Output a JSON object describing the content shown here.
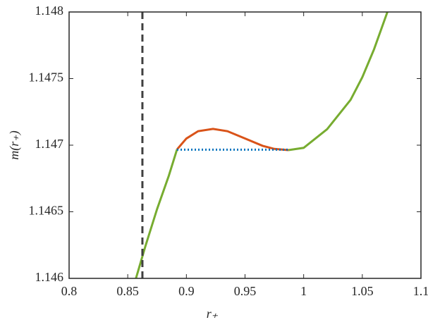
{
  "chart_data": {
    "type": "line",
    "x_label": "r₊",
    "y_label": "m(r₊)",
    "xlim": [
      0.8,
      1.1
    ],
    "xticks": [
      0.8,
      0.85,
      0.9,
      0.95,
      1,
      1.05,
      1.1
    ],
    "ylim": [
      1.146,
      1.148
    ],
    "yticks": [
      1.146,
      1.1465,
      1.147,
      1.1475,
      1.148
    ],
    "grid": false,
    "series": [
      {
        "color": "#77ac30",
        "style": "solid",
        "x": [
          0.857,
          0.865,
          0.875,
          0.885,
          0.892,
          null,
          0.987,
          1.0,
          1.02,
          1.04,
          1.05,
          1.06,
          1.0714
        ],
        "values": [
          1.146,
          1.14624,
          1.14652,
          1.14677,
          1.146968,
          null,
          1.146963,
          1.14698,
          1.14712,
          1.14734,
          1.14751,
          1.14772,
          1.148
        ]
      },
      {
        "color": "#d95319",
        "style": "solid",
        "x": [
          0.892,
          0.9,
          0.91,
          0.9227,
          0.935,
          0.95,
          0.965,
          0.975,
          0.987
        ],
        "values": [
          1.146968,
          1.14705,
          1.147105,
          1.147122,
          1.147105,
          1.14705,
          1.146995,
          1.146972,
          1.146963
        ]
      },
      {
        "color": "#0072bd",
        "style": "dotted",
        "x": [
          0.892,
          0.987
        ],
        "values": [
          1.146966,
          1.146966
        ]
      },
      {
        "color": "#404040",
        "style": "dashed",
        "x": [
          0.8625,
          0.8625
        ],
        "values": [
          1.146,
          1.148
        ]
      }
    ]
  }
}
